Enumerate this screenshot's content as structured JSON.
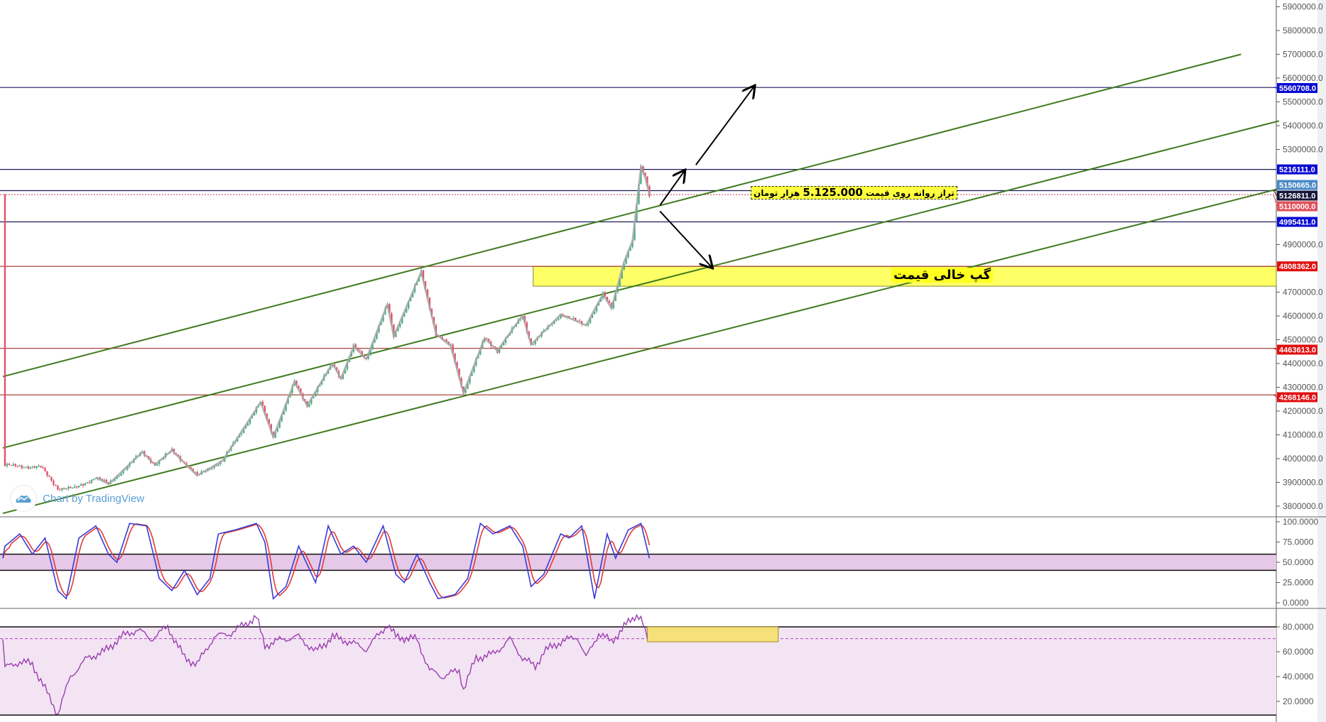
{
  "chart_data": [
    {
      "type": "candlestick",
      "pane": "price",
      "y_ticks": [
        "5900000.0",
        "5800000.0",
        "5700000.0",
        "5600000.0",
        "5500000.0",
        "5400000.0",
        "5300000.0",
        "4900000.0",
        "4700000.0",
        "4600000.0",
        "4500000.0",
        "4400000.0",
        "4300000.0",
        "4200000.0",
        "4100000.0",
        "4000000.0",
        "3900000.0",
        "3800000.0"
      ],
      "ylim": [
        3760000,
        5930000
      ],
      "close_path": [
        [
          1,
          3970700
        ],
        [
          18,
          3963600
        ],
        [
          26,
          3874800
        ],
        [
          34,
          3874800
        ],
        [
          44,
          3921000
        ],
        [
          50,
          3892600
        ],
        [
          66,
          4027600
        ],
        [
          72,
          3974300
        ],
        [
          80,
          4034700
        ],
        [
          92,
          3928100
        ],
        [
          104,
          3992000
        ],
        [
          122,
          4237200
        ],
        [
          128,
          4091500
        ],
        [
          138,
          4322500
        ],
        [
          144,
          4223000
        ],
        [
          156,
          4400600
        ],
        [
          160,
          4336700
        ],
        [
          166,
          4471700
        ],
        [
          172,
          4418400
        ],
        [
          182,
          4649400
        ],
        [
          185,
          4514300
        ],
        [
          198,
          4784400
        ],
        [
          205,
          4525000
        ],
        [
          212,
          4471700
        ],
        [
          218,
          4276300
        ],
        [
          228,
          4507200
        ],
        [
          234,
          4453900
        ],
        [
          246,
          4603200
        ],
        [
          250,
          4478800
        ],
        [
          264,
          4606700
        ],
        [
          276,
          4560500
        ],
        [
          284,
          4692000
        ],
        [
          288,
          4631600
        ],
        [
          294,
          4827000
        ],
        [
          298,
          4915800
        ],
        [
          302,
          5225000
        ],
        [
          304,
          5182300
        ],
        [
          306,
          5110000
        ]
      ],
      "bar_range": [
        0,
        604
      ],
      "horizontal_levels": [
        {
          "price": 5560708,
          "label": "5560708.0",
          "line_color": "#1c1c5c",
          "label_color": "#0a0ad2"
        },
        {
          "price": 5216111,
          "label": "5216111.0",
          "line_color": "#1c1c5c",
          "label_color": "#0a0ad2"
        },
        {
          "price": 5126811,
          "label": "5126811.0",
          "line_color": "#1c1c5c",
          "label_color": "#16163a"
        },
        {
          "price": 4995411,
          "label": "4995411.0",
          "line_color": "#1c1c5c",
          "label_color": "#0a0ad2"
        },
        {
          "price": 4808362,
          "label": "4808362.0",
          "line_color": "#a03028",
          "label_color": "#e01010"
        },
        {
          "price": 4463613,
          "label": "4463613.0",
          "line_color": "#a03028",
          "label_color": "#e01010"
        },
        {
          "price": 4268146,
          "label": "4268146.0",
          "line_color": "#a03028",
          "label_color": "#e01010"
        }
      ],
      "markers": [
        {
          "price": 5150665,
          "label": "5150665.0",
          "label_color": "#4a88c6"
        },
        {
          "price": 5110000,
          "label": "5110000.0",
          "label_color": "#e0505a",
          "dotted": true
        }
      ],
      "channel_lines": [
        {
          "from": [
            0,
            4345000
          ],
          "to": [
            586,
            5700000
          ]
        },
        {
          "from": [
            0,
            4045000
          ],
          "to": [
            604,
            5420000
          ]
        },
        {
          "from": [
            0,
            3770000
          ],
          "to": [
            604,
            5135000
          ]
        }
      ],
      "gap_zone": {
        "from_bar": 251,
        "price_top": 4808362,
        "price_bottom": 4725000,
        "label": "گپ خالی قیمت",
        "color": "#ffff66"
      },
      "note": {
        "text_before": "تراز روانه روی قیمت",
        "value": "5.125.000",
        "text_after": "هزار تومان"
      },
      "arrows": [
        {
          "from": [
            311,
            5065000
          ],
          "to": [
            323,
            5215000
          ]
        },
        {
          "from": [
            311,
            5040000
          ],
          "to": [
            336,
            4800000
          ]
        },
        {
          "from": [
            328,
            5235000
          ],
          "to": [
            356,
            5570000
          ]
        }
      ],
      "candle_colors": {
        "up": "#4fae86",
        "down": "#e0506a",
        "zigzag": "#a6a6a6",
        "channel": "#3f7a1e"
      }
    },
    {
      "type": "line",
      "pane": "stochastic",
      "y_ticks": [
        "100.0000",
        "75.0000",
        "50.0000",
        "25.0000",
        "0.0000"
      ],
      "ylim": [
        0,
        100
      ],
      "band": [
        40,
        60
      ],
      "k_points": [
        [
          1,
          70
        ],
        [
          8,
          85
        ],
        [
          14,
          60
        ],
        [
          20,
          80
        ],
        [
          26,
          15
        ],
        [
          30,
          5
        ],
        [
          36,
          80
        ],
        [
          44,
          95
        ],
        [
          50,
          60
        ],
        [
          54,
          50
        ],
        [
          60,
          98
        ],
        [
          68,
          95
        ],
        [
          74,
          30
        ],
        [
          80,
          15
        ],
        [
          86,
          40
        ],
        [
          92,
          10
        ],
        [
          98,
          30
        ],
        [
          102,
          85
        ],
        [
          110,
          90
        ],
        [
          120,
          98
        ],
        [
          124,
          75
        ],
        [
          128,
          5
        ],
        [
          134,
          20
        ],
        [
          140,
          70
        ],
        [
          148,
          25
        ],
        [
          154,
          95
        ],
        [
          160,
          60
        ],
        [
          166,
          70
        ],
        [
          172,
          50
        ],
        [
          180,
          95
        ],
        [
          186,
          35
        ],
        [
          190,
          25
        ],
        [
          196,
          60
        ],
        [
          202,
          25
        ],
        [
          206,
          5
        ],
        [
          214,
          10
        ],
        [
          220,
          30
        ],
        [
          226,
          98
        ],
        [
          232,
          85
        ],
        [
          240,
          95
        ],
        [
          246,
          70
        ],
        [
          250,
          20
        ],
        [
          256,
          35
        ],
        [
          264,
          85
        ],
        [
          268,
          80
        ],
        [
          274,
          95
        ],
        [
          280,
          5
        ],
        [
          286,
          85
        ],
        [
          290,
          55
        ],
        [
          296,
          90
        ],
        [
          302,
          98
        ],
        [
          306,
          55
        ]
      ],
      "colors": {
        "k": "#3b3bd6",
        "d": "#e03a3a",
        "band": "#e6c8e8"
      }
    },
    {
      "type": "line",
      "pane": "rsi",
      "y_ticks": [
        "80.0000",
        "60.0000",
        "40.0000",
        "20.0000"
      ],
      "ylim": [
        5,
        95
      ],
      "upper": 80,
      "lower": 9,
      "mid_dashed": 70.5,
      "points": [
        [
          1,
          47
        ],
        [
          8,
          52
        ],
        [
          14,
          50
        ],
        [
          20,
          30
        ],
        [
          26,
          10
        ],
        [
          32,
          40
        ],
        [
          40,
          55
        ],
        [
          48,
          60
        ],
        [
          56,
          72
        ],
        [
          64,
          78
        ],
        [
          70,
          70
        ],
        [
          78,
          80
        ],
        [
          86,
          55
        ],
        [
          92,
          50
        ],
        [
          100,
          72
        ],
        [
          108,
          75
        ],
        [
          120,
          88
        ],
        [
          124,
          65
        ],
        [
          132,
          70
        ],
        [
          140,
          72
        ],
        [
          148,
          60
        ],
        [
          156,
          72
        ],
        [
          164,
          68
        ],
        [
          172,
          62
        ],
        [
          182,
          82
        ],
        [
          186,
          72
        ],
        [
          196,
          70
        ],
        [
          202,
          45
        ],
        [
          208,
          40
        ],
        [
          216,
          45
        ],
        [
          218,
          30
        ],
        [
          224,
          55
        ],
        [
          232,
          58
        ],
        [
          240,
          70
        ],
        [
          246,
          55
        ],
        [
          252,
          48
        ],
        [
          256,
          60
        ],
        [
          264,
          68
        ],
        [
          272,
          72
        ],
        [
          276,
          55
        ],
        [
          282,
          75
        ],
        [
          288,
          68
        ],
        [
          294,
          80
        ],
        [
          300,
          90
        ],
        [
          302,
          87
        ],
        [
          305,
          70
        ]
      ],
      "highlight": {
        "from_bar": 305,
        "to_bar": 367,
        "top": 80,
        "bottom": 68,
        "color": "#f5e07a"
      },
      "colors": {
        "line": "#9b3fb0",
        "fill": "#f3e4f3"
      }
    }
  ],
  "watermark": {
    "text": "Chart by TradingView",
    "icon": "tradingview-cloud-icon"
  }
}
